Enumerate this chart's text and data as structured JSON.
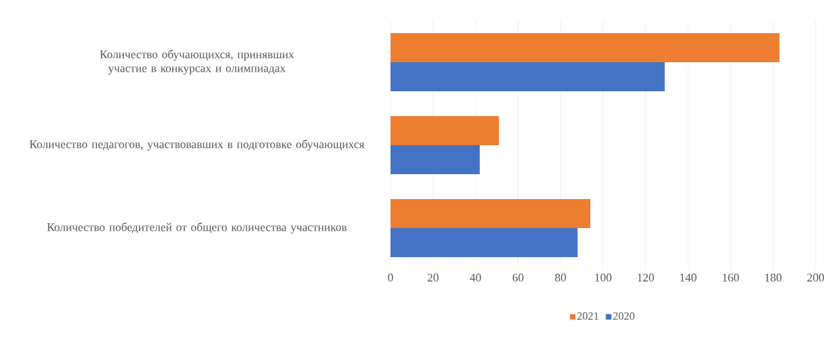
{
  "chart_data": {
    "type": "bar",
    "orientation": "horizontal",
    "categories": [
      "Количество обучающихся, принявших участие в конкурсах и олимпиадах",
      "Количество педагогов, участвовавших в подготовке обучающихся",
      "Количество победителей от общего количества участников"
    ],
    "series": [
      {
        "name": "2021",
        "color": "#ed7d31",
        "values": [
          183,
          51,
          94
        ]
      },
      {
        "name": "2020",
        "color": "#4472c4",
        "values": [
          129,
          42,
          88
        ]
      }
    ],
    "xlim": [
      0,
      200
    ],
    "xticks": [
      0,
      20,
      40,
      60,
      80,
      100,
      120,
      140,
      160,
      180,
      200
    ],
    "grid": "x",
    "legend": "bottom"
  }
}
